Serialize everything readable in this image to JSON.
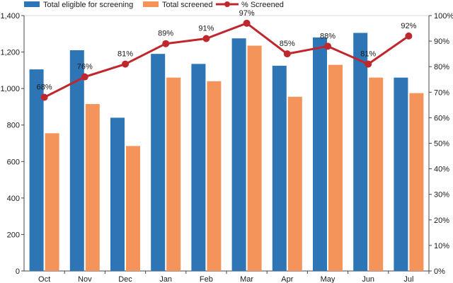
{
  "chart_data": {
    "type": "bar",
    "title": "",
    "xlabel": "",
    "ylabel": "",
    "categories": [
      "Oct",
      "Nov",
      "Dec",
      "Jan",
      "Feb",
      "Mar",
      "Apr",
      "May",
      "Jun",
      "Jul"
    ],
    "ylim": [
      0,
      1400
    ],
    "y_ticks": [
      "0",
      "200",
      "400",
      "600",
      "800",
      "1,000",
      "1,200",
      "1,400"
    ],
    "y2lim": [
      0,
      100
    ],
    "y2_ticks": [
      "0%",
      "10%",
      "20%",
      "30%",
      "40%",
      "50%",
      "60%",
      "70%",
      "80%",
      "90%",
      "100%"
    ],
    "legend_position": "top-left",
    "series": [
      {
        "name": "Total eligible for screening",
        "kind": "bar",
        "color": "#2e75b6",
        "values": [
          1105,
          1210,
          840,
          1190,
          1135,
          1275,
          1125,
          1280,
          1305,
          1060
        ]
      },
      {
        "name": "Total screened",
        "kind": "bar",
        "color": "#f4945a",
        "values": [
          755,
          915,
          685,
          1060,
          1040,
          1235,
          955,
          1130,
          1060,
          975
        ]
      },
      {
        "name": "% Screened",
        "kind": "line",
        "axis": "secondary",
        "color": "#c0272d",
        "values": [
          68,
          76,
          81,
          89,
          91,
          97,
          85,
          88,
          81,
          92
        ],
        "labels": [
          "68%",
          "76%",
          "81%",
          "89%",
          "91%",
          "97%",
          "85%",
          "88%",
          "81%",
          "92%"
        ]
      }
    ]
  }
}
